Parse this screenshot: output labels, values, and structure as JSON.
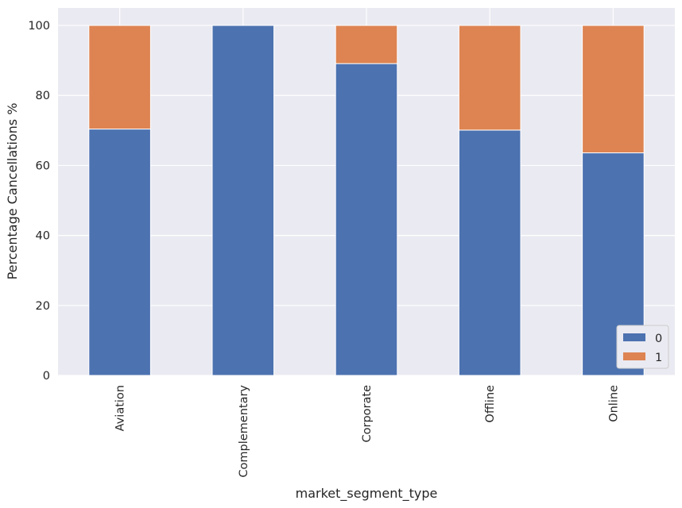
{
  "chart_data": {
    "type": "bar",
    "stacked": true,
    "categories": [
      "Aviation",
      "Complementary",
      "Corporate",
      "Offline",
      "Online"
    ],
    "series": [
      {
        "name": "0",
        "values": [
          70.4,
          100.0,
          89.1,
          70.1,
          63.6
        ],
        "color": "#4c72b0"
      },
      {
        "name": "1",
        "values": [
          29.6,
          0.0,
          10.9,
          29.9,
          36.4
        ],
        "color": "#dd8452"
      }
    ],
    "title": "",
    "xlabel": "market_segment_type",
    "ylabel": "Percentage Cancellations %",
    "ylim": [
      0,
      105
    ],
    "yticks": [
      0,
      20,
      40,
      60,
      80,
      100
    ],
    "grid": true,
    "legend_position": "bottom-right",
    "background": "#eaeaf2"
  }
}
